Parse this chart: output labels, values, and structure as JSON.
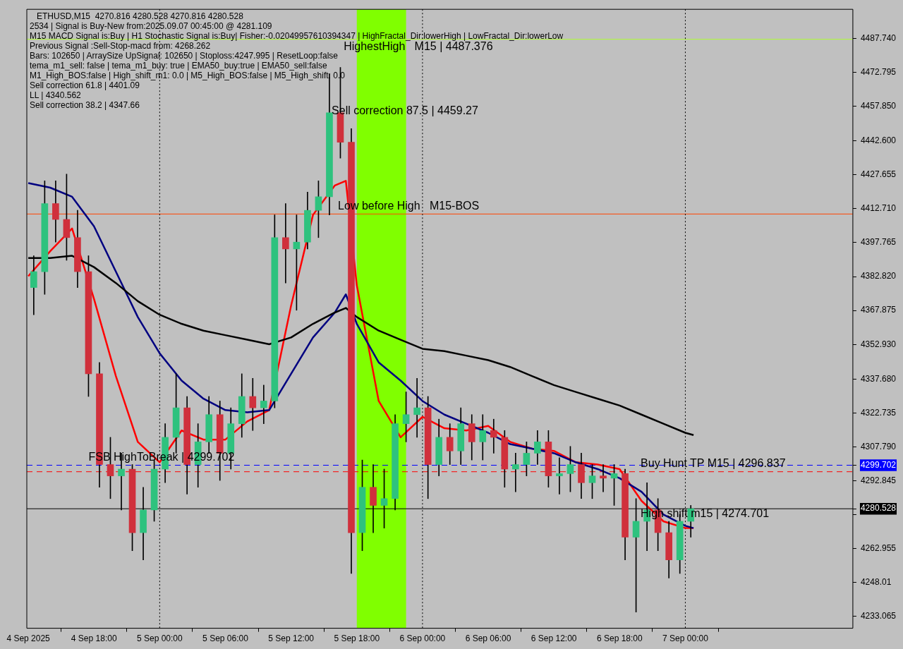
{
  "chart_data": {
    "type": "candlestick",
    "title": "ETHUSD,M15  4270.816 4280.528 4270.816 4280.528",
    "annotations": [
      "2534 | Signal is Buy-New from:2025.09.07 00:45:00 @ 4281.109",
      "M15 MACD Signal is:Buy | H1 Stochastic Signal is:Buy| Fisher:-0.02049957610394347 | HighFractal_Dir:lowerHigh | LowFractal_Dir:lowerLow",
      "Previous Signal :Sell-Stop-macd from: 4268.262",
      "Bars: 102650 | ArraySize UpSignal: 102650 | Stoploss:4247.995 | ResetLoop:false",
      "tema_m1_sell: false | tema_m1_buy: true | EMA50_buy:true | EMA50_sell:false",
      "M1_High_BOS:false | High_shift_m1: 0.0 | M5_High_BOS:false | M5_High_shift: 0.0",
      {
        "text": "HighestHigh   M15 | 4487.376",
        "x": "2025-09-05T16:48",
        "y": 4487.376
      },
      {
        "text": "Sell correction 87.5 | 4459.27",
        "x": "2025-09-05T15:42",
        "y": 4459.27
      },
      {
        "text": "Low before High   M15-BOS",
        "x": "2025-09-05T16:17",
        "y": 4410.39
      },
      "Sell correction 61.8 | 4401.09",
      "LL | 4340.562",
      "Sell correction 38.2 | 4347.66",
      {
        "text": "FSB HighToBreak | 4299.702",
        "x": "2025-09-04T17:30",
        "y": 4299.702
      },
      {
        "text": "Buy Hunt TP M15 | 4296.837",
        "x": "2025-09-06T19:55",
        "y": 4296.837
      },
      {
        "text": "High shift m15 | 4274.701",
        "x": "2025-09-06T19:55",
        "y": 4274.701
      }
    ],
    "series": [
      {
        "type": "line",
        "color": "#000000",
        "x": [
          "2025-09-04T12:00",
          "2025-09-04T14:00",
          "2025-09-04T16:00",
          "2025-09-04T18:00",
          "2025-09-04T20:00",
          "2025-09-04T22:00",
          "2025-09-05T00:00",
          "2025-09-05T02:00",
          "2025-09-05T04:00",
          "2025-09-05T06:00",
          "2025-09-05T08:00",
          "2025-09-05T10:00",
          "2025-09-05T12:00",
          "2025-09-05T14:00",
          "2025-09-05T16:00",
          "2025-09-05T17:00",
          "2025-09-05T18:00",
          "2025-09-05T20:00",
          "2025-09-05T22:00",
          "2025-09-06T00:00",
          "2025-09-06T02:00",
          "2025-09-06T04:00",
          "2025-09-06T06:00",
          "2025-09-06T08:00",
          "2025-09-06T10:00",
          "2025-09-06T12:00",
          "2025-09-06T14:00",
          "2025-09-06T16:00",
          "2025-09-06T18:00",
          "2025-09-06T20:00",
          "2025-09-06T22:00",
          "2025-09-07T00:00",
          "2025-09-07T00:45"
        ],
        "values": [
          4391,
          4391,
          4392,
          4387,
          4380,
          4372,
          4366,
          4362,
          4359,
          4357,
          4355,
          4353,
          4356,
          4362,
          4367,
          4369,
          4365,
          4359,
          4355,
          4351,
          4350,
          4348,
          4346,
          4343,
          4339,
          4335,
          4332,
          4329,
          4326,
          4322,
          4318,
          4314,
          4313
        ]
      },
      {
        "type": "line",
        "color": "#000080",
        "x": [
          "2025-09-04T12:00",
          "2025-09-04T14:00",
          "2025-09-04T16:00",
          "2025-09-04T18:00",
          "2025-09-04T20:00",
          "2025-09-04T22:00",
          "2025-09-05T00:00",
          "2025-09-05T02:00",
          "2025-09-05T04:00",
          "2025-09-05T06:00",
          "2025-09-05T08:00",
          "2025-09-05T10:00",
          "2025-09-05T12:00",
          "2025-09-05T14:00",
          "2025-09-05T16:00",
          "2025-09-05T17:00",
          "2025-09-05T18:00",
          "2025-09-05T20:00",
          "2025-09-05T22:00",
          "2025-09-06T00:00",
          "2025-09-06T02:00",
          "2025-09-06T04:00",
          "2025-09-06T06:00",
          "2025-09-06T08:00",
          "2025-09-06T10:00",
          "2025-09-06T12:00",
          "2025-09-06T14:00",
          "2025-09-06T16:00",
          "2025-09-06T18:00",
          "2025-09-06T20:00",
          "2025-09-06T22:00",
          "2025-09-07T00:00",
          "2025-09-07T00:45"
        ],
        "values": [
          4424,
          4422,
          4418,
          4405,
          4385,
          4365,
          4349,
          4337,
          4329,
          4324,
          4323,
          4324,
          4340,
          4356,
          4367,
          4375,
          4362,
          4345,
          4337,
          4328,
          4322,
          4318,
          4314,
          4309,
          4307,
          4305,
          4301,
          4298,
          4294,
          4288,
          4278,
          4273,
          4272
        ]
      },
      {
        "type": "line",
        "color": "#ff0000",
        "x": [
          "2025-09-04T12:00",
          "2025-09-04T14:00",
          "2025-09-04T16:00",
          "2025-09-04T18:00",
          "2025-09-04T20:00",
          "2025-09-04T22:00",
          "2025-09-05T00:00",
          "2025-09-05T02:00",
          "2025-09-05T04:00",
          "2025-09-05T06:00",
          "2025-09-05T08:00",
          "2025-09-05T10:00",
          "2025-09-05T12:00",
          "2025-09-05T14:00",
          "2025-09-05T16:00",
          "2025-09-05T17:00",
          "2025-09-05T18:00",
          "2025-09-05T20:00",
          "2025-09-05T22:00",
          "2025-09-06T00:00",
          "2025-09-06T02:00",
          "2025-09-06T04:00",
          "2025-09-06T06:00",
          "2025-09-06T08:00",
          "2025-09-06T10:00",
          "2025-09-06T12:00",
          "2025-09-06T14:00",
          "2025-09-06T16:00",
          "2025-09-06T18:00",
          "2025-09-06T20:00",
          "2025-09-06T22:00",
          "2025-09-07T00:00",
          "2025-09-07T00:45"
        ],
        "values": [
          4383,
          4394,
          4404,
          4373,
          4339,
          4310,
          4301,
          4315,
          4311,
          4311,
          4319,
          4324,
          4370,
          4410,
          4423,
          4425,
          4379,
          4328,
          4312,
          4321,
          4316,
          4315,
          4317,
          4310,
          4307,
          4306,
          4301,
          4300,
          4298,
          4284,
          4275,
          4272,
          4272
        ]
      },
      {
        "color": "#000000",
        "x": [
          "2025-09-04T12:30",
          "2025-09-04T13:30",
          "2025-09-04T14:30",
          "2025-09-04T15:30",
          "2025-09-04T16:30",
          "2025-09-04T17:30",
          "2025-09-04T18:30",
          "2025-09-04T19:30",
          "2025-09-04T20:30",
          "2025-09-04T21:30",
          "2025-09-04T22:30",
          "2025-09-04T23:30",
          "2025-09-05T00:30",
          "2025-09-05T01:30",
          "2025-09-05T02:30",
          "2025-09-05T03:30",
          "2025-09-05T04:30",
          "2025-09-05T05:30",
          "2025-09-05T06:30",
          "2025-09-05T07:30",
          "2025-09-05T08:30",
          "2025-09-05T09:30",
          "2025-09-05T10:30",
          "2025-09-05T11:30",
          "2025-09-05T12:30",
          "2025-09-05T13:30",
          "2025-09-05T14:30",
          "2025-09-05T15:30",
          "2025-09-05T16:30",
          "2025-09-05T17:30",
          "2025-09-05T18:30",
          "2025-09-05T19:30",
          "2025-09-05T20:30",
          "2025-09-05T21:30",
          "2025-09-05T22:30",
          "2025-09-05T23:30",
          "2025-09-06T00:30",
          "2025-09-06T01:30",
          "2025-09-06T02:30",
          "2025-09-06T03:30",
          "2025-09-06T04:30",
          "2025-09-06T05:30",
          "2025-09-06T06:30",
          "2025-09-06T07:30",
          "2025-09-06T08:30",
          "2025-09-06T09:30",
          "2025-09-06T10:30",
          "2025-09-06T11:30",
          "2025-09-06T12:30",
          "2025-09-06T13:30",
          "2025-09-06T14:30",
          "2025-09-06T15:30",
          "2025-09-06T16:30",
          "2025-09-06T17:30",
          "2025-09-06T18:30",
          "2025-09-06T19:30",
          "2025-09-06T20:30",
          "2025-09-06T21:30",
          "2025-09-06T22:30",
          "2025-09-06T23:30",
          "2025-09-07T00:30"
        ],
        "ohlc": [
          [
            4378,
            4392,
            4366,
            4385
          ],
          [
            4385,
            4425,
            4375,
            4415
          ],
          [
            4415,
            4425,
            4398,
            4408
          ],
          [
            4408,
            4428,
            4390,
            4400
          ],
          [
            4400,
            4412,
            4378,
            4385
          ],
          [
            4385,
            4392,
            4330,
            4340
          ],
          [
            4340,
            4345,
            4290,
            4300
          ],
          [
            4300,
            4312,
            4285,
            4295
          ],
          [
            4295,
            4305,
            4280,
            4298
          ],
          [
            4298,
            4300,
            4262,
            4270
          ],
          [
            4270,
            4290,
            4258,
            4280
          ],
          [
            4280,
            4302,
            4275,
            4298
          ],
          [
            4298,
            4318,
            4292,
            4312
          ],
          [
            4312,
            4340,
            4305,
            4325
          ],
          [
            4325,
            4330,
            4287,
            4300
          ],
          [
            4300,
            4318,
            4290,
            4310
          ],
          [
            4310,
            4330,
            4305,
            4322
          ],
          [
            4322,
            4328,
            4293,
            4305
          ],
          [
            4305,
            4325,
            4298,
            4318
          ],
          [
            4318,
            4340,
            4312,
            4330
          ],
          [
            4330,
            4338,
            4315,
            4325
          ],
          [
            4325,
            4335,
            4318,
            4328
          ],
          [
            4328,
            4410,
            4325,
            4400
          ],
          [
            4400,
            4415,
            4380,
            4395
          ],
          [
            4395,
            4410,
            4368,
            4398
          ],
          [
            4398,
            4420,
            4395,
            4412
          ],
          [
            4412,
            4425,
            4400,
            4418
          ],
          [
            4418,
            4472,
            4410,
            4455
          ],
          [
            4455,
            4475,
            4435,
            4442
          ],
          [
            4442,
            4448,
            4252,
            4270
          ],
          [
            4270,
            4302,
            4262,
            4290
          ],
          [
            4290,
            4300,
            4270,
            4282
          ],
          [
            4282,
            4298,
            4272,
            4285
          ],
          [
            4285,
            4322,
            4280,
            4318
          ],
          [
            4318,
            4332,
            4310,
            4322
          ],
          [
            4322,
            4338,
            4312,
            4325
          ],
          [
            4325,
            4330,
            4285,
            4300
          ],
          [
            4300,
            4320,
            4295,
            4312
          ],
          [
            4312,
            4318,
            4300,
            4306
          ],
          [
            4306,
            4325,
            4300,
            4318
          ],
          [
            4318,
            4322,
            4302,
            4310
          ],
          [
            4310,
            4322,
            4302,
            4315
          ],
          [
            4315,
            4320,
            4305,
            4312
          ],
          [
            4312,
            4315,
            4290,
            4298
          ],
          [
            4298,
            4305,
            4288,
            4300
          ],
          [
            4300,
            4310,
            4295,
            4305
          ],
          [
            4305,
            4315,
            4300,
            4310
          ],
          [
            4310,
            4315,
            4290,
            4295
          ],
          [
            4295,
            4303,
            4287,
            4296
          ],
          [
            4296,
            4308,
            4288,
            4300
          ],
          [
            4300,
            4305,
            4285,
            4292
          ],
          [
            4292,
            4300,
            4285,
            4295
          ],
          [
            4295,
            4300,
            4288,
            4294
          ],
          [
            4294,
            4300,
            4282,
            4296
          ],
          [
            4296,
            4298,
            4258,
            4268
          ],
          [
            4268,
            4285,
            4235,
            4275
          ],
          [
            4275,
            4292,
            4262,
            4280
          ],
          [
            4280,
            4285,
            4262,
            4270
          ],
          [
            4270,
            4275,
            4250,
            4258
          ],
          [
            4258,
            4278,
            4252,
            4275
          ],
          [
            4275,
            4282,
            4268,
            4280.528
          ]
        ],
        "colors": [
          "#2ec27e",
          "#2ec27e",
          "#d0303c",
          "#d0303c",
          "#d0303c",
          "#d0303c",
          "#d0303c",
          "#d0303c",
          "#2ec27e",
          "#d0303c",
          "#2ec27e",
          "#2ec27e",
          "#2ec27e",
          "#2ec27e",
          "#d0303c",
          "#2ec27e",
          "#2ec27e",
          "#d0303c",
          "#2ec27e",
          "#2ec27e",
          "#d0303c",
          "#2ec27e",
          "#2ec27e",
          "#d0303c",
          "#2ec27e",
          "#2ec27e",
          "#2ec27e",
          "#2ec27e",
          "#d0303c",
          "#d0303c",
          "#2ec27e",
          "#d0303c",
          "#2ec27e",
          "#2ec27e",
          "#2ec27e",
          "#2ec27e",
          "#d0303c",
          "#2ec27e",
          "#d0303c",
          "#2ec27e",
          "#d0303c",
          "#2ec27e",
          "#d0303c",
          "#d0303c",
          "#2ec27e",
          "#2ec27e",
          "#2ec27e",
          "#d0303c",
          "#2ec27e",
          "#2ec27e",
          "#d0303c",
          "#2ec27e",
          "#d0303c",
          "#2ec27e",
          "#d0303c",
          "#2ec27e",
          "#2ec27e",
          "#d0303c",
          "#d0303c",
          "#2ec27e",
          "#2ec27e"
        ]
      }
    ],
    "xlim": [
      "2025-09-04T11:52",
      "2025-09-07T15:18"
    ],
    "xticks": [
      {
        "value": "2025-09-04T12:00",
        "label": "4 Sep 2025"
      },
      {
        "value": "2025-09-04T18:00",
        "label": "4 Sep 18:00"
      },
      {
        "value": "2025-09-05T00:00",
        "label": "5 Sep 00:00"
      },
      {
        "value": "2025-09-05T06:00",
        "label": "5 Sep 06:00"
      },
      {
        "value": "2025-09-05T12:00",
        "label": "5 Sep 12:00"
      },
      {
        "value": "2025-09-05T18:00",
        "label": "5 Sep 18:00"
      },
      {
        "value": "2025-09-06T00:00",
        "label": "6 Sep 00:00"
      },
      {
        "value": "2025-09-06T06:00",
        "label": "6 Sep 06:00"
      },
      {
        "value": "2025-09-06T12:00",
        "label": "6 Sep 12:00"
      },
      {
        "value": "2025-09-06T18:00",
        "label": "6 Sep 18:00"
      },
      {
        "value": "2025-09-07T00:00",
        "label": "7 Sep 00:00"
      }
    ],
    "ylim": [
      4227.87,
      4500.58
    ],
    "yticks": [
      4233.065,
      4248.01,
      {
        "value": 4262.955,
        "label": "4262.955"
      },
      {
        "value": 4277.9,
        "label": null
      },
      4280.528,
      4292.845,
      4299.702,
      {
        "value": 4307.79,
        "label": "4307.790"
      },
      4322.735,
      {
        "value": 4337.68,
        "label": "4337.680"
      },
      {
        "value": 4352.93,
        "label": "4352.930"
      },
      4367.875,
      {
        "value": 4382.82,
        "label": "4382.820"
      },
      4397.765,
      {
        "value": 4412.71,
        "label": "4412.710"
      },
      4427.655,
      {
        "value": 4442.6,
        "label": "4442.600"
      },
      {
        "value": 4457.85,
        "label": "4457.850"
      },
      4472.795,
      {
        "value": 4487.74,
        "label": "4487.740"
      }
    ],
    "ref_lines": [
      {
        "axis": "y",
        "value": 4487.376,
        "color": "#adff2f",
        "line_style": "solid"
      },
      {
        "axis": "y",
        "value": 4410.39,
        "color": "#ff4500",
        "line_style": "solid"
      },
      {
        "axis": "y",
        "value": 4299.702,
        "color": "#0000ff",
        "line_style": "dashed"
      },
      {
        "axis": "y",
        "value": 4296.837,
        "color": "#ff0000",
        "line_style": "dashed"
      },
      {
        "axis": "y",
        "value": 4280.528,
        "color": "#000000",
        "line_style": "solid"
      },
      {
        "axis": "x",
        "value": "2025-09-05T00:00",
        "color": "#000000",
        "line_style": "dotted"
      },
      {
        "axis": "x",
        "value": "2025-09-06T00:00",
        "color": "#000000",
        "line_style": "dotted"
      },
      {
        "axis": "x",
        "value": "2025-09-07T00:00",
        "color": "#000000",
        "line_style": "dotted"
      }
    ],
    "bands": [
      {
        "axis": "x",
        "from": "2025-09-05T18:00",
        "to": "2025-09-05T22:30",
        "color": "#80ff00"
      }
    ],
    "grid": false,
    "legend": false,
    "marker": "none"
  }
}
